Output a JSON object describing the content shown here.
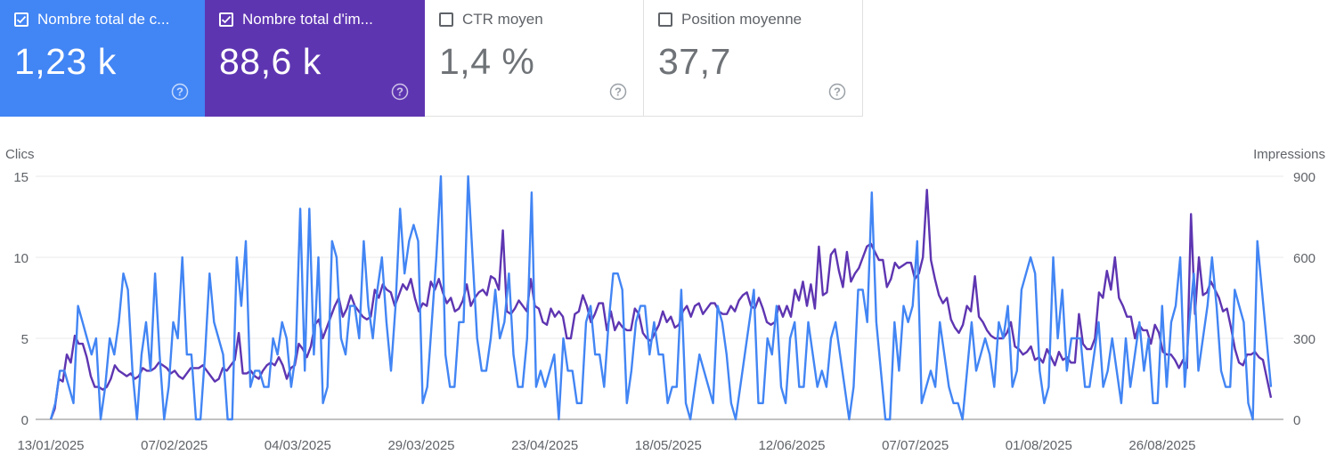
{
  "metrics": [
    {
      "label": "Nombre total de clics",
      "display_label": "Nombre total de c...",
      "value": "1,23 k",
      "checked": true,
      "color": "#4285f4"
    },
    {
      "label": "Nombre total d'impressions",
      "display_label": "Nombre total d'im...",
      "value": "88,6 k",
      "checked": true,
      "color": "#5e35b1"
    },
    {
      "label": "CTR moyen",
      "display_label": "CTR moyen",
      "value": "1,4 %",
      "checked": false
    },
    {
      "label": "Position moyenne",
      "display_label": "Position moyenne",
      "value": "37,7",
      "checked": false
    }
  ],
  "icons": {
    "checkbox": "checkbox-icon",
    "help": "help-circle-icon"
  },
  "chart_data": {
    "type": "line",
    "left_axis_label": "Clics",
    "right_axis_label": "Impressions",
    "left_ylim": [
      0,
      15
    ],
    "right_ylim": [
      0,
      900
    ],
    "left_ticks": [
      "0",
      "5",
      "10",
      "15"
    ],
    "right_ticks": [
      "0",
      "300",
      "600",
      "900"
    ],
    "x_tick_labels": [
      "13/01/2025",
      "07/02/2025",
      "04/03/2025",
      "29/03/2025",
      "23/04/2025",
      "18/05/2025",
      "12/06/2025",
      "07/07/2025",
      "01/08/2025",
      "26/08/2025"
    ],
    "x_start": "2025-01-13",
    "x_end": "2025-09-17",
    "series": [
      {
        "name": "Clics",
        "axis": "left",
        "color": "#4285f4",
        "values": [
          0,
          1,
          3,
          3,
          2,
          1,
          7,
          6,
          5,
          4,
          5,
          0,
          2,
          5,
          4,
          6,
          9,
          8,
          3,
          0,
          4,
          6,
          3,
          9,
          4,
          0,
          2,
          6,
          5,
          10,
          4,
          4,
          0,
          0,
          4,
          9,
          6,
          5,
          4,
          0,
          0,
          10,
          7,
          11,
          2,
          3,
          3,
          2,
          2,
          5,
          4,
          6,
          5,
          2,
          4,
          13,
          3,
          13,
          4,
          10,
          1,
          2,
          11,
          10,
          5,
          4,
          7,
          7,
          5,
          11,
          7,
          5,
          8,
          10,
          6,
          3,
          7,
          13,
          9,
          11,
          12,
          11,
          1,
          2,
          6,
          10,
          15,
          4,
          2,
          2,
          6,
          6,
          15,
          10,
          5,
          3,
          3,
          5,
          8,
          5,
          6,
          9,
          4,
          2,
          2,
          5,
          14,
          2,
          3,
          2,
          3,
          4,
          0,
          5,
          3,
          3,
          1,
          1,
          6,
          7,
          4,
          4,
          2,
          6,
          9,
          9,
          8,
          1,
          3,
          6,
          7,
          7,
          4,
          6,
          4,
          4,
          1,
          2,
          2,
          8,
          1,
          0,
          2,
          4,
          3,
          2,
          1,
          7,
          6,
          4,
          1,
          0,
          2,
          4,
          6,
          8,
          1,
          1,
          5,
          4,
          7,
          2,
          1,
          5,
          6,
          2,
          2,
          6,
          4,
          2,
          3,
          2,
          5,
          6,
          4,
          2,
          0,
          2,
          8,
          8,
          6,
          14,
          6,
          3,
          0,
          0,
          6,
          3,
          7,
          6,
          7,
          11,
          1,
          2,
          3,
          2,
          6,
          4,
          2,
          1,
          1,
          0,
          3,
          6,
          3,
          4,
          5,
          4,
          2,
          6,
          5,
          7,
          2,
          3,
          8,
          9,
          10,
          9,
          3,
          1,
          2,
          10,
          5,
          8,
          3,
          5,
          5,
          5,
          2,
          2,
          4,
          6,
          2,
          3,
          5,
          3,
          1,
          5,
          2,
          4,
          6,
          3,
          5,
          1,
          1,
          7,
          2,
          6,
          7,
          10,
          2,
          6,
          9,
          3,
          5,
          7,
          10,
          7,
          3,
          2,
          2,
          8,
          7,
          6,
          1,
          0,
          11,
          8,
          5,
          2
        ]
      },
      {
        "name": "Impressions",
        "axis": "right",
        "color": "#5e35b1",
        "values": [
          0,
          40,
          150,
          140,
          240,
          210,
          310,
          280,
          280,
          230,
          160,
          120,
          120,
          110,
          120,
          150,
          200,
          180,
          170,
          160,
          170,
          150,
          160,
          190,
          180,
          180,
          190,
          210,
          200,
          190,
          170,
          180,
          160,
          150,
          170,
          190,
          190,
          190,
          200,
          180,
          160,
          140,
          150,
          190,
          180,
          200,
          220,
          320,
          170,
          170,
          180,
          160,
          150,
          180,
          200,
          210,
          200,
          230,
          200,
          150,
          190,
          200,
          280,
          260,
          230,
          270,
          350,
          370,
          300,
          340,
          380,
          420,
          450,
          380,
          410,
          460,
          420,
          400,
          380,
          370,
          380,
          480,
          450,
          500,
          480,
          470,
          420,
          460,
          500,
          480,
          520,
          450,
          400,
          430,
          420,
          510,
          480,
          520,
          470,
          430,
          450,
          400,
          410,
          440,
          500,
          420,
          450,
          470,
          480,
          460,
          530,
          520,
          480,
          700,
          400,
          390,
          410,
          440,
          420,
          400,
          520,
          420,
          410,
          360,
          350,
          410,
          380,
          400,
          380,
          300,
          300,
          390,
          400,
          460,
          420,
          360,
          390,
          430,
          430,
          330,
          400,
          330,
          360,
          340,
          330,
          330,
          410,
          390,
          320,
          300,
          290,
          320,
          350,
          400,
          360,
          380,
          340,
          350,
          400,
          420,
          380,
          420,
          430,
          390,
          410,
          430,
          430,
          400,
          390,
          390,
          420,
          400,
          440,
          460,
          470,
          420,
          410,
          450,
          410,
          360,
          350,
          360,
          420,
          380,
          420,
          380,
          480,
          440,
          510,
          420,
          500,
          410,
          640,
          460,
          470,
          610,
          630,
          550,
          490,
          620,
          510,
          540,
          560,
          600,
          640,
          650,
          620,
          590,
          590,
          490,
          520,
          580,
          560,
          570,
          580,
          580,
          520,
          540,
          600,
          850,
          590,
          520,
          460,
          430,
          450,
          370,
          340,
          320,
          350,
          420,
          400,
          530,
          380,
          360,
          330,
          310,
          300,
          300,
          300,
          320,
          360,
          270,
          260,
          240,
          250,
          270,
          220,
          230,
          210,
          260,
          230,
          200,
          250,
          220,
          230,
          210,
          210,
          390,
          280,
          260,
          260,
          300,
          470,
          450,
          550,
          480,
          600,
          450,
          420,
          380,
          380,
          300,
          350,
          330,
          330,
          280,
          350,
          320,
          250,
          240,
          240,
          220,
          190,
          220,
          190,
          760,
          390,
          600,
          460,
          470,
          510,
          480,
          450,
          400,
          410,
          340,
          260,
          210,
          200,
          240,
          240,
          250,
          230,
          220,
          150,
          80
        ]
      }
    ]
  }
}
